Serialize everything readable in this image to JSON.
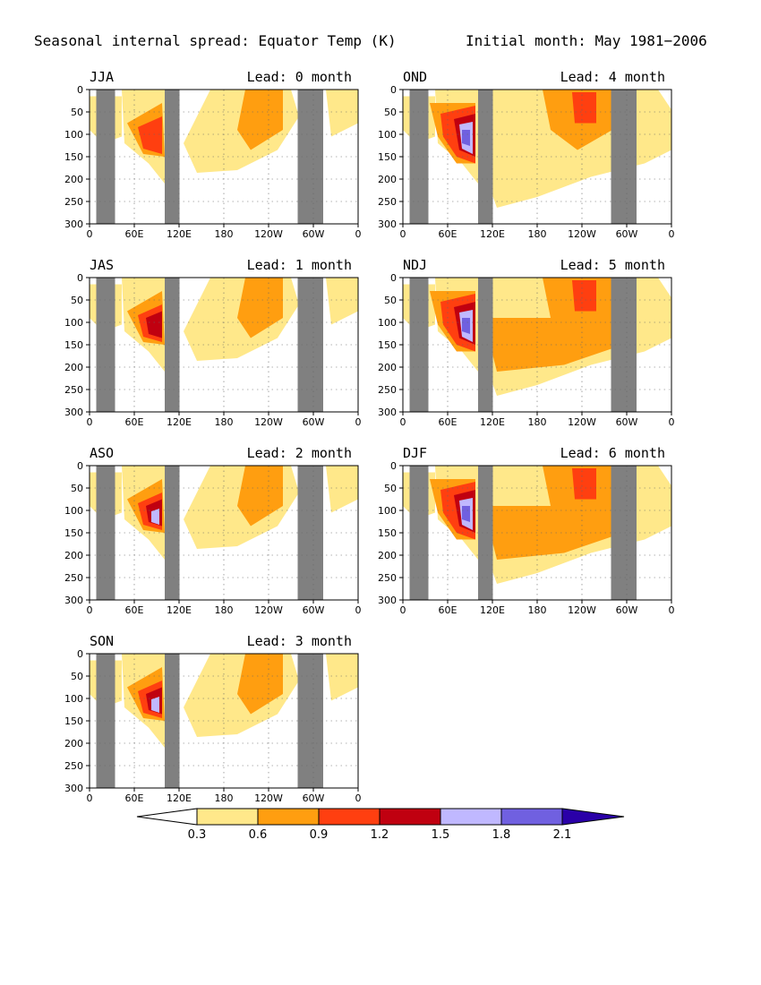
{
  "title_left": "Seasonal internal spread: Equator Temp (K)",
  "title_right": "Initial month: May 1981−2006",
  "colors": {
    "land_mask": "#808080",
    "levels": [
      "#ffe88a",
      "#ff9e10",
      "#ff3f10",
      "#c00010",
      "#c0b8ff",
      "#7060e0",
      "#2a00a8"
    ]
  },
  "chart_data": {
    "type": "heatmap",
    "x_ticks": [
      "0",
      "60E",
      "120E",
      "180",
      "120W",
      "60W",
      "0"
    ],
    "y_ticks": [
      "0",
      "50",
      "100",
      "150",
      "200",
      "250",
      "300"
    ],
    "xlim": [
      0,
      360
    ],
    "ylim": [
      300,
      0
    ],
    "grid": true,
    "colorbar": {
      "labels": [
        "0.3",
        "0.6",
        "0.9",
        "1.2",
        "1.5",
        "1.8",
        "2.1"
      ],
      "levels": [
        0.3,
        0.6,
        0.9,
        1.2,
        1.5,
        1.8,
        2.1
      ]
    },
    "panels": [
      {
        "season": "JJA",
        "lead": "Lead: 0 month"
      },
      {
        "season": "OND",
        "lead": "Lead: 4 month"
      },
      {
        "season": "JAS",
        "lead": "Lead: 1 month"
      },
      {
        "season": "NDJ",
        "lead": "Lead: 5 month"
      },
      {
        "season": "ASO",
        "lead": "Lead: 2 month"
      },
      {
        "season": "DJF",
        "lead": "Lead: 6 month"
      },
      {
        "season": "SON",
        "lead": "Lead: 3 month"
      }
    ]
  }
}
